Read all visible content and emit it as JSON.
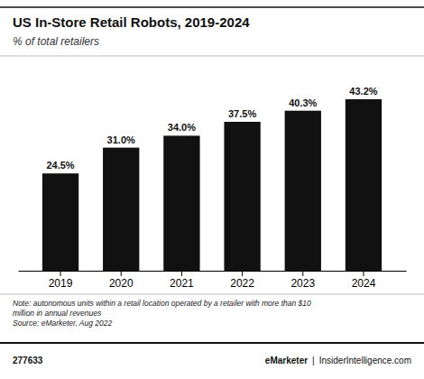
{
  "chart_data": {
    "type": "bar",
    "title": "US In-Store Retail Robots, 2019-2024",
    "subtitle": "% of total retailers",
    "categories": [
      "2019",
      "2020",
      "2021",
      "2022",
      "2023",
      "2024"
    ],
    "values": [
      24.5,
      31.0,
      34.0,
      37.5,
      40.3,
      43.2
    ],
    "value_labels": [
      "24.5%",
      "31.0%",
      "34.0%",
      "37.5%",
      "40.3%",
      "43.2%"
    ],
    "data_labels": true,
    "color": "#111111",
    "ylim": [
      0,
      50
    ],
    "tick_labels": "x",
    "notes": [
      "Note: autonomous units within a retail location operated by a retailer with more than $10",
      "million in annual revenues",
      "Source: eMarketer, Aug 2022"
    ],
    "footer": [
      "277633",
      "eMarketer",
      "|",
      "InsiderIntelligence.com"
    ]
  }
}
